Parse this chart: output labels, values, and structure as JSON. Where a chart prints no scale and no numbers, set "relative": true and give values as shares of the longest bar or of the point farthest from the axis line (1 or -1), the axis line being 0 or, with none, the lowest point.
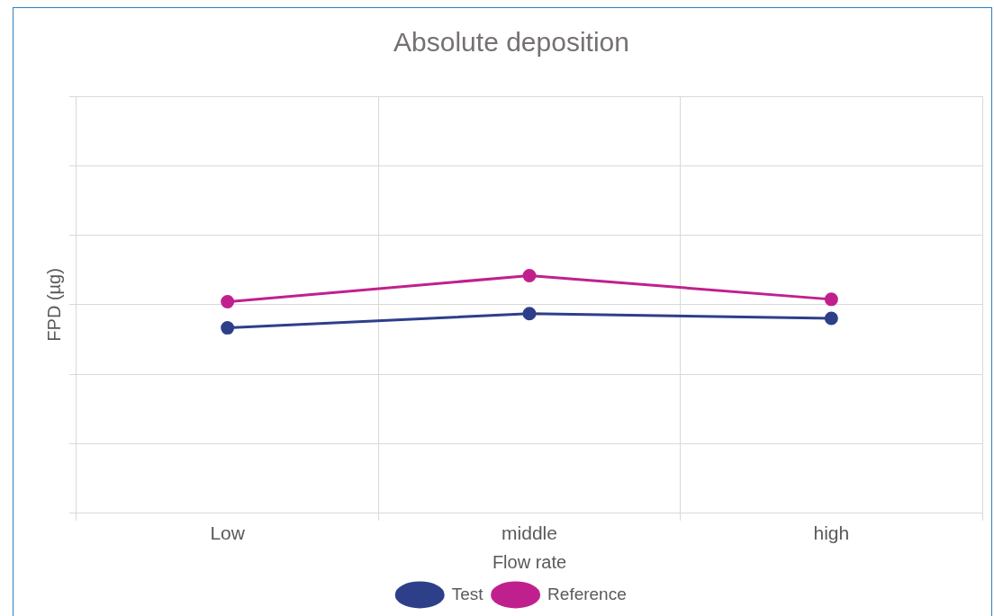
{
  "chart_data": {
    "type": "line",
    "title": "Absolute deposition",
    "xlabel": "Flow rate",
    "ylabel": "FPD (µg)",
    "categories": [
      "Low",
      "middle",
      "high"
    ],
    "relative": true,
    "grid": true,
    "legend": "bottom",
    "marker": "circle",
    "line_style": "solid",
    "series": [
      {
        "name": "Test",
        "color": "#2e3f8a",
        "values": [
          0.78,
          0.84,
          0.82
        ]
      },
      {
        "name": "Reference",
        "color": "#c0208e",
        "values": [
          0.89,
          1,
          0.9
        ]
      }
    ]
  }
}
